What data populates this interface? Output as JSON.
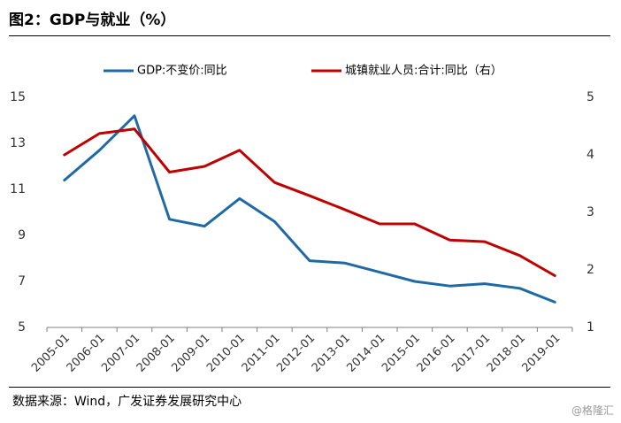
{
  "title": "图2：GDP与就业（%）",
  "source": "数据来源：Wind，广发证券发展研究中心",
  "watermark": "@格隆汇",
  "chart_data": {
    "type": "line",
    "categories": [
      "2005-01",
      "2006-01",
      "2007-01",
      "2008-01",
      "2009-01",
      "2010-01",
      "2011-01",
      "2012-01",
      "2013-01",
      "2014-01",
      "2015-01",
      "2016-01",
      "2017-01",
      "2018-01",
      "2019-01"
    ],
    "series": [
      {
        "name": "GDP:不变价:同比",
        "axis": "left",
        "color": "#1f6aa5",
        "values": [
          11.4,
          12.7,
          14.2,
          9.7,
          9.4,
          10.6,
          9.6,
          7.9,
          7.8,
          7.4,
          7.0,
          6.8,
          6.9,
          6.7,
          6.1
        ]
      },
      {
        "name": "城镇就业人员:合计:同比（右）",
        "axis": "right",
        "color": "#c00000",
        "values": [
          4.0,
          4.37,
          4.45,
          3.7,
          3.8,
          4.08,
          3.52,
          3.29,
          3.05,
          2.8,
          2.8,
          2.52,
          2.49,
          2.25,
          1.9
        ]
      }
    ],
    "y_left": {
      "min": 5,
      "max": 15,
      "ticks": [
        5,
        7,
        9,
        11,
        13,
        15
      ]
    },
    "y_right": {
      "min": 1,
      "max": 5,
      "ticks": [
        1,
        2,
        3,
        4,
        5
      ]
    },
    "grid": false,
    "legend": "top"
  }
}
